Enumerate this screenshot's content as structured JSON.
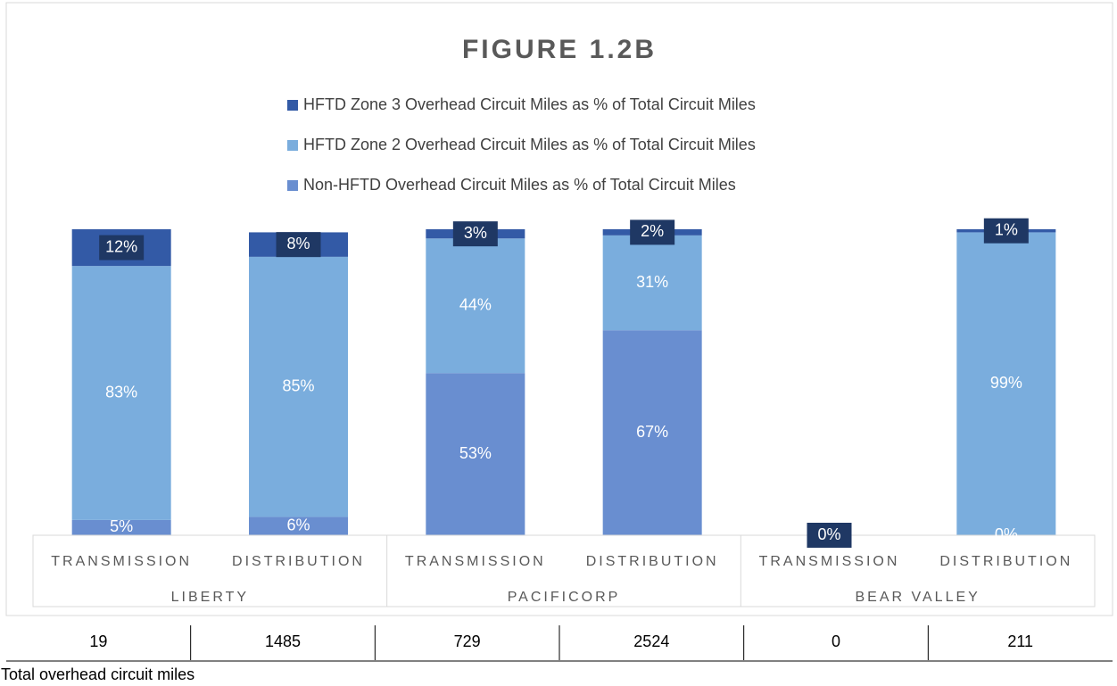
{
  "chart_data": {
    "type": "stacked_bar",
    "title": "FIGURE 1.2B",
    "categories": [
      "TRANSMISSION",
      "DISTRIBUTION",
      "TRANSMISSION",
      "DISTRIBUTION",
      "TRANSMISSION",
      "DISTRIBUTION"
    ],
    "groups": [
      "LIBERTY",
      "PACIFICORP",
      "BEAR VALLEY"
    ],
    "ylim": [
      0,
      100
    ],
    "series": [
      {
        "name": "Non-HFTD Overhead Circuit Miles as % of Total Circuit Miles",
        "color": "#698ed0",
        "values": [
          5,
          6,
          53,
          67,
          0,
          0
        ],
        "value_labels": [
          "5%",
          "6%",
          "53%",
          "67%",
          null,
          "0%"
        ]
      },
      {
        "name": "HFTD Zone 2 Overhead Circuit Miles as % of Total Circuit Miles",
        "color": "#7aaddd",
        "values": [
          83,
          85,
          44,
          31,
          0,
          99
        ],
        "value_labels": [
          "83%",
          "85%",
          "44%",
          "31%",
          null,
          "99%"
        ]
      },
      {
        "name": "HFTD Zone 3 Overhead Circuit Miles as % of Total Circuit Miles",
        "color": "#335aa6",
        "values": [
          12,
          8,
          3,
          2,
          0,
          1
        ],
        "value_labels": [
          "12%",
          "8%",
          "3%",
          "2%",
          "0%",
          "1%"
        ]
      }
    ]
  },
  "table": {
    "values": [
      19,
      1485,
      729,
      2524,
      0,
      211
    ],
    "caption": "Total overhead circuit miles"
  }
}
